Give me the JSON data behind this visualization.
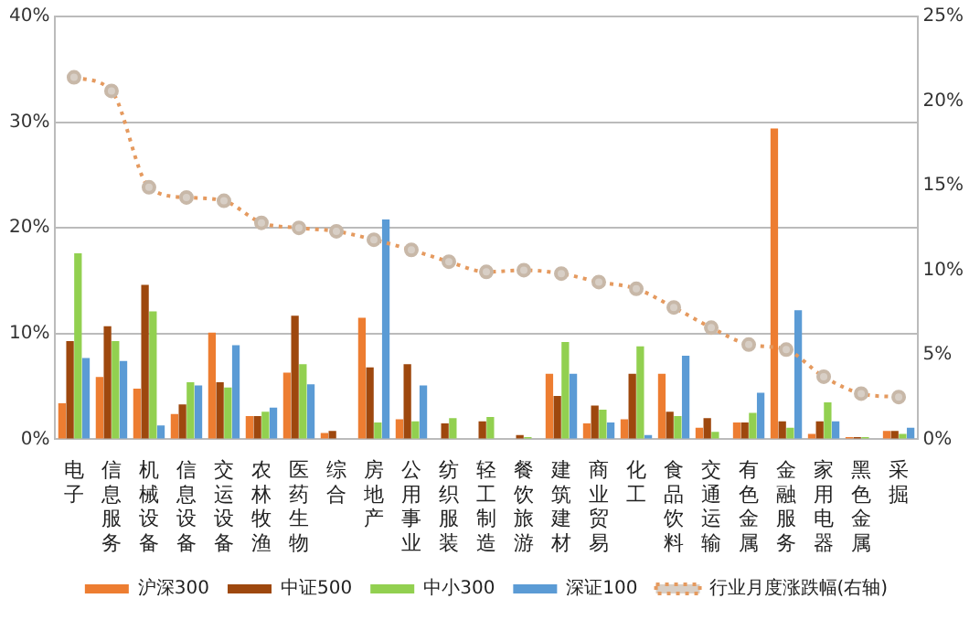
{
  "chart_data": {
    "type": "bar",
    "categories": [
      "电子",
      "信息服务",
      "机械设备",
      "信息设备",
      "交运设备",
      "农林牧渔",
      "医药生物",
      "综合",
      "房地产",
      "公用事业",
      "纺织服装",
      "轻工制造",
      "餐饮旅游",
      "建筑建材",
      "商业贸易",
      "化工",
      "食品饮料",
      "交通运输",
      "有色金属",
      "金融服务",
      "家用电器",
      "黑色金属",
      "采掘"
    ],
    "series": [
      {
        "name": "沪深300",
        "color": "#ed7d31",
        "values": [
          3.4,
          5.9,
          4.8,
          2.4,
          10.1,
          2.2,
          6.3,
          0.6,
          11.5,
          1.9,
          0,
          0,
          null,
          6.2,
          1.5,
          1.9,
          6.2,
          1.1,
          1.6,
          29.4,
          0.5,
          0.2,
          0.8
        ]
      },
      {
        "name": "中证500",
        "color": "#9e480e",
        "values": [
          9.3,
          10.7,
          14.6,
          3.3,
          5.4,
          2.2,
          11.7,
          0.8,
          6.8,
          7.1,
          1.5,
          1.7,
          0.4,
          4.1,
          3.2,
          6.2,
          2.6,
          2.0,
          1.6,
          1.7,
          1.7,
          0.2,
          0.8
        ]
      },
      {
        "name": "中小300",
        "color": "#92d050",
        "values": [
          17.6,
          9.3,
          12.1,
          5.4,
          4.9,
          2.6,
          7.1,
          0,
          1.6,
          1.7,
          2.0,
          2.1,
          0.2,
          9.2,
          2.8,
          8.8,
          2.2,
          0.7,
          2.5,
          1.1,
          3.5,
          0.2,
          0.5
        ]
      },
      {
        "name": "深证100",
        "color": "#5b9bd5",
        "values": [
          7.7,
          7.4,
          1.3,
          5.1,
          8.9,
          3.0,
          5.2,
          0,
          20.8,
          5.1,
          0,
          0,
          0,
          6.2,
          1.6,
          0.4,
          7.9,
          null,
          4.4,
          12.2,
          1.7,
          null,
          1.1
        ]
      },
      {
        "name": "行业月度涨跌幅(右轴)",
        "type": "line",
        "axis": "y2",
        "color": "#e59a5f",
        "values": [
          21.4,
          20.6,
          14.9,
          14.3,
          14.1,
          12.8,
          12.5,
          12.3,
          11.8,
          11.2,
          10.5,
          9.9,
          10.0,
          9.8,
          9.3,
          8.9,
          7.8,
          6.6,
          5.6,
          5.3,
          3.7,
          2.7,
          2.5
        ]
      }
    ],
    "ylim": [
      0,
      40
    ],
    "yticks": [
      {
        "value": 0,
        "label": "0%"
      },
      {
        "value": 10,
        "label": "10%"
      },
      {
        "value": 20,
        "label": "20%"
      },
      {
        "value": 30,
        "label": "30%"
      },
      {
        "value": 40,
        "label": "40%"
      }
    ],
    "y2lim": [
      0,
      25
    ],
    "y2ticks": [
      {
        "value": 0,
        "label": "0%"
      },
      {
        "value": 5,
        "label": "5%"
      },
      {
        "value": 10,
        "label": "10%"
      },
      {
        "value": 15,
        "label": "15%"
      },
      {
        "value": 20,
        "label": "20%"
      },
      {
        "value": 25,
        "label": "25%"
      }
    ],
    "grid": "y",
    "legend": "bottom",
    "marker": "circle",
    "line_style": "dotted"
  }
}
